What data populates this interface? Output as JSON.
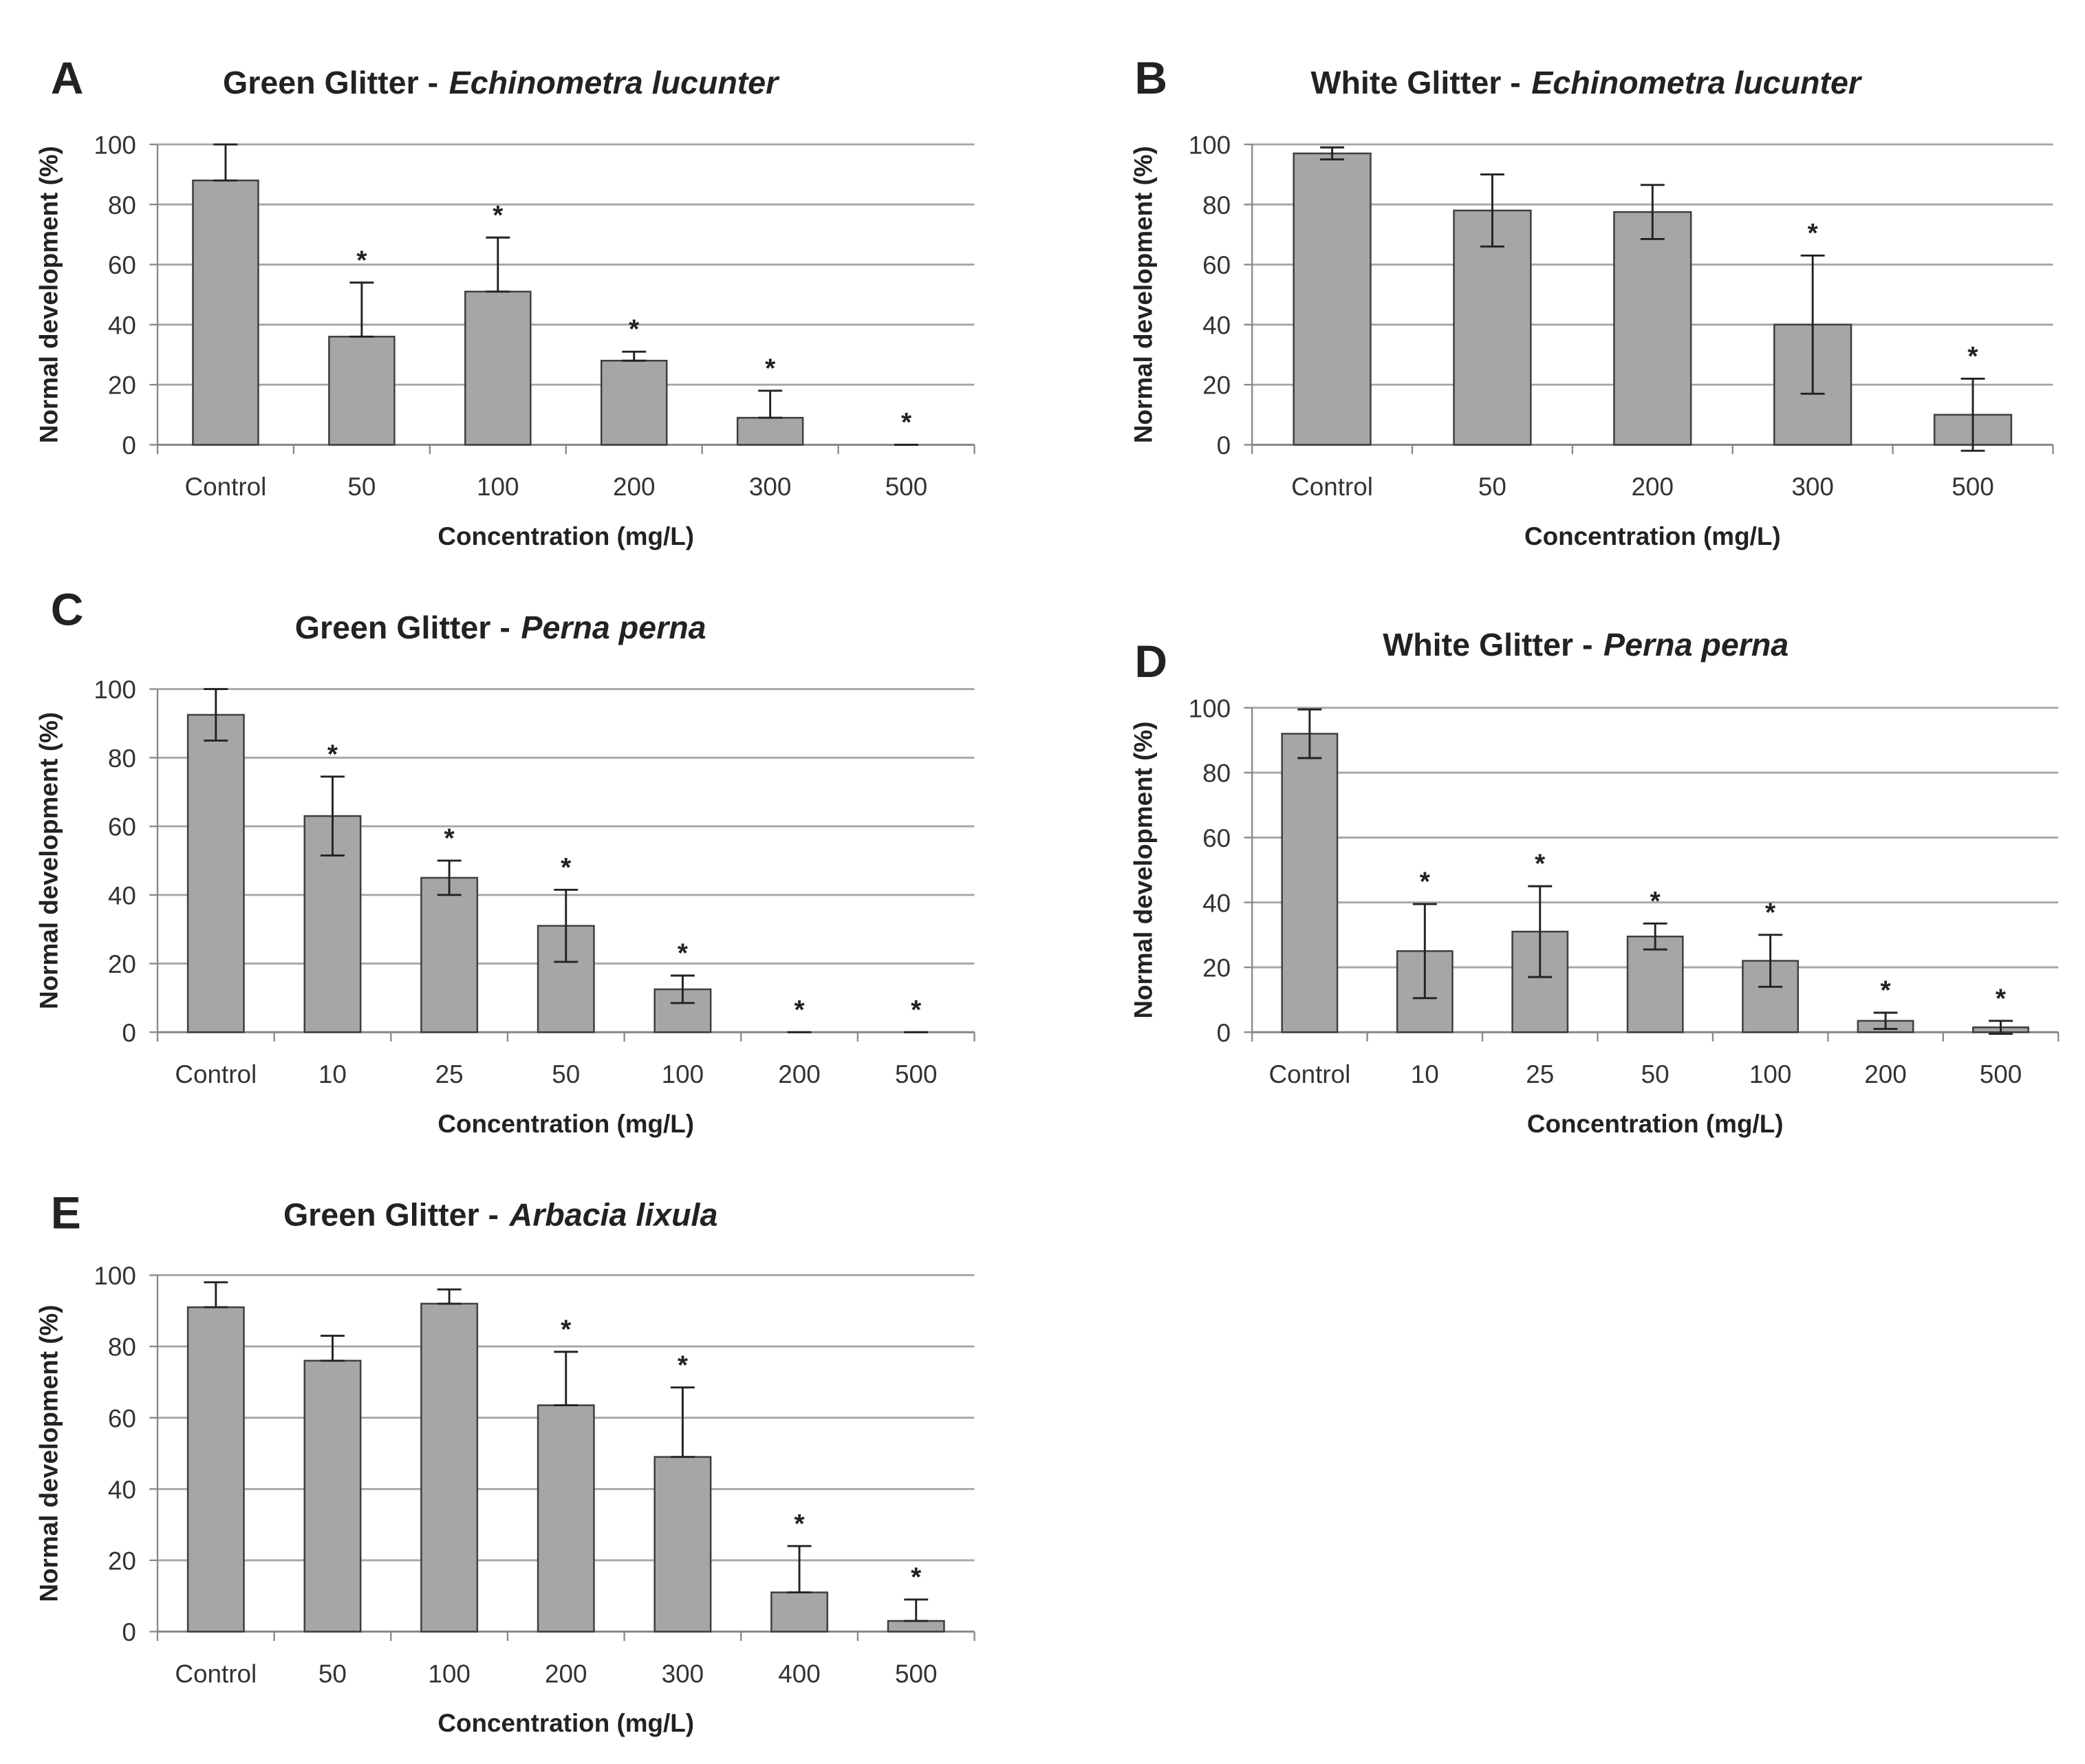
{
  "chart_data": [
    {
      "type": "bar",
      "panel": "A",
      "title": "Green Glitter -",
      "title_species": "Echinometra lucunter",
      "categories": [
        "Control",
        "50",
        "100",
        "200",
        "300",
        "500"
      ],
      "values": [
        88,
        36,
        51,
        28,
        9,
        0
      ],
      "errors": [
        12,
        18,
        18,
        3,
        9,
        0
      ],
      "annotations": [
        null,
        "*",
        "*",
        "*",
        "*",
        "*"
      ],
      "error_bars": "upper",
      "xlabel": "Concentration (mg/L)",
      "ylabel": "Normal development (%)",
      "ylim": [
        0,
        100
      ],
      "yticks": [
        0,
        20,
        40,
        60,
        80,
        100
      ],
      "grid": true,
      "color": "#a6a6a6"
    },
    {
      "type": "bar",
      "panel": "B",
      "title": "White Glitter -",
      "title_species": "Echinometra lucunter",
      "categories": [
        "Control",
        "50",
        "200",
        "300",
        "500"
      ],
      "values": [
        97,
        78,
        77.5,
        40,
        10
      ],
      "errors": [
        2,
        12,
        9,
        23,
        12
      ],
      "annotations": [
        null,
        null,
        null,
        "*",
        "*"
      ],
      "error_bars": "both",
      "xlabel": "Concentration (mg/L)",
      "ylabel": "Normal development (%)",
      "ylim": [
        0,
        100
      ],
      "yticks": [
        0,
        20,
        40,
        60,
        80,
        100
      ],
      "grid": true,
      "color": "#a6a6a6"
    },
    {
      "type": "bar",
      "panel": "C",
      "title": "Green Glitter -",
      "title_species": "Perna perna",
      "categories": [
        "Control",
        "10",
        "25",
        "50",
        "100",
        "200",
        "500"
      ],
      "values": [
        92.5,
        63,
        45,
        31,
        12.5,
        0,
        0
      ],
      "errors": [
        7.5,
        11.5,
        5,
        10.5,
        4,
        0,
        0
      ],
      "annotations": [
        null,
        "*",
        "*",
        "*",
        "*",
        "*",
        "*"
      ],
      "error_bars": "both",
      "xlabel": "Concentration (mg/L)",
      "ylabel": "Normal development (%)",
      "ylim": [
        0,
        100
      ],
      "yticks": [
        0,
        20,
        40,
        60,
        80,
        100
      ],
      "grid": true,
      "color": "#a6a6a6"
    },
    {
      "type": "bar",
      "panel": "D",
      "title": "White Glitter -",
      "title_species": "Perna perna",
      "categories": [
        "Control",
        "10",
        "25",
        "50",
        "100",
        "200",
        "500"
      ],
      "values": [
        92,
        25,
        31,
        29.5,
        22,
        3.5,
        1.5
      ],
      "errors": [
        7.5,
        14.5,
        14,
        4,
        8,
        2.5,
        2
      ],
      "annotations": [
        null,
        "*",
        "*",
        "*",
        "*",
        "*",
        "*"
      ],
      "error_bars": "both",
      "xlabel": "Concentration (mg/L)",
      "ylabel": "Normal development (%)",
      "ylim": [
        0,
        100
      ],
      "yticks": [
        0,
        20,
        40,
        60,
        80,
        100
      ],
      "grid": true,
      "color": "#a6a6a6"
    },
    {
      "type": "bar",
      "panel": "E",
      "title": "Green Glitter -",
      "title_species": "Arbacia lixula",
      "categories": [
        "Control",
        "50",
        "100",
        "200",
        "300",
        "400",
        "500"
      ],
      "values": [
        91,
        76,
        92,
        63.5,
        49,
        11,
        3
      ],
      "errors": [
        7,
        7,
        4,
        15,
        19.5,
        13,
        6
      ],
      "annotations": [
        null,
        null,
        null,
        "*",
        "*",
        "*",
        "*"
      ],
      "error_bars": "upper",
      "xlabel": "Concentration (mg/L)",
      "ylabel": "Normal development (%)",
      "ylim": [
        0,
        100
      ],
      "yticks": [
        0,
        20,
        40,
        60,
        80,
        100
      ],
      "grid": true,
      "color": "#a6a6a6"
    }
  ]
}
